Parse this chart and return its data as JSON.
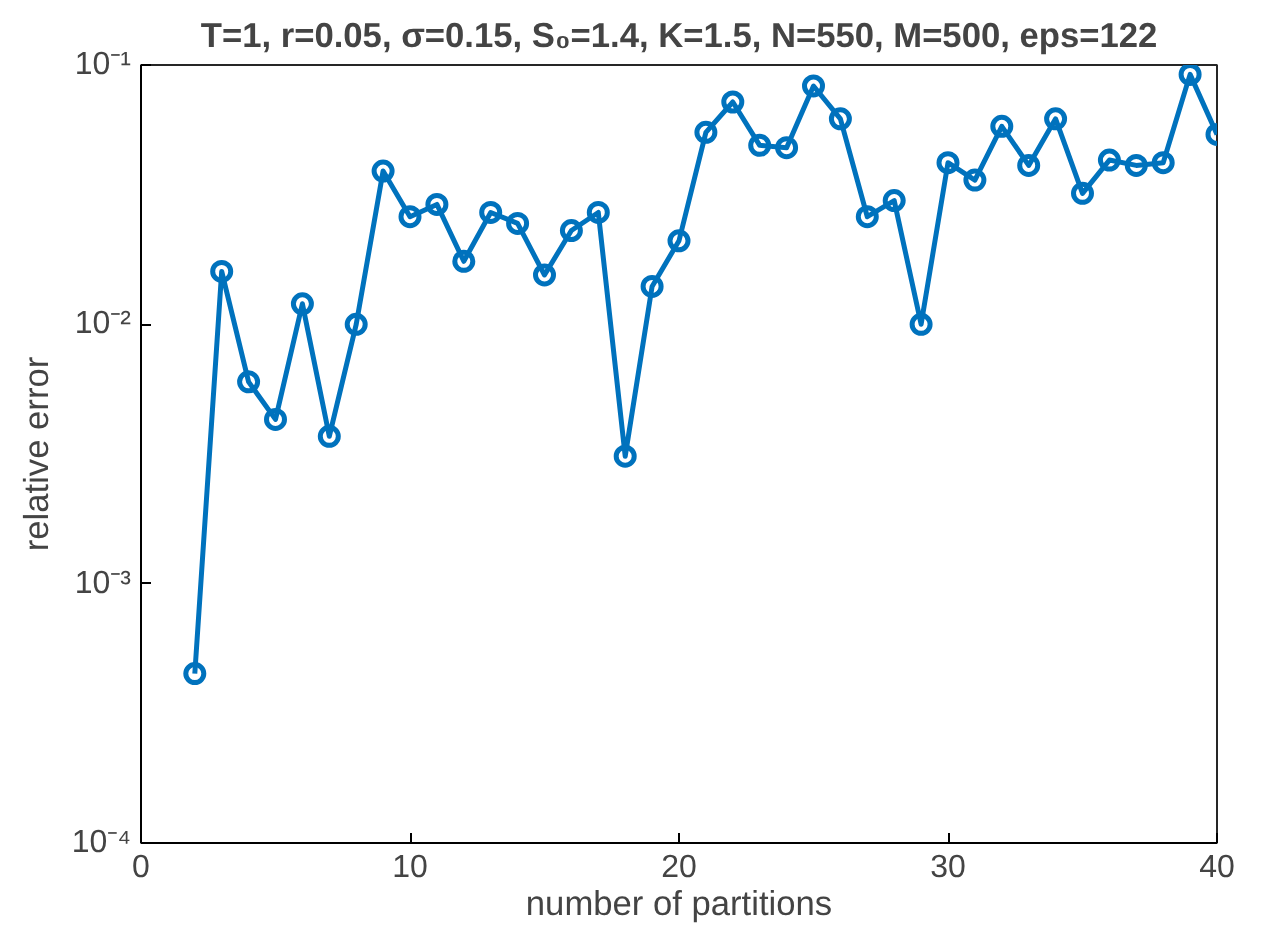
{
  "chart_data": {
    "type": "line",
    "title": "T=1, r=0.05, σ=0.15, S₀=1.4, K=1.5, N=550, M=500, eps=122",
    "xlabel": "number of partitions",
    "ylabel": "relative error",
    "x": [
      2,
      3,
      4,
      5,
      6,
      7,
      8,
      9,
      10,
      11,
      12,
      13,
      14,
      15,
      16,
      17,
      18,
      19,
      20,
      21,
      22,
      23,
      24,
      25,
      26,
      27,
      28,
      29,
      30,
      31,
      32,
      33,
      34,
      35,
      36,
      37,
      38,
      39,
      40
    ],
    "series": [
      {
        "color": "#0072bd",
        "values": [
          0.00045,
          0.016,
          0.006,
          0.0043,
          0.012,
          0.0037,
          0.01,
          0.039,
          0.026,
          0.029,
          0.0175,
          0.027,
          0.0245,
          0.0155,
          0.023,
          0.027,
          0.0031,
          0.014,
          0.021,
          0.055,
          0.072,
          0.049,
          0.048,
          0.083,
          0.062,
          0.026,
          0.03,
          0.01,
          0.042,
          0.036,
          0.058,
          0.041,
          0.062,
          0.032,
          0.043,
          0.041,
          0.042,
          0.092,
          0.054
        ]
      }
    ],
    "xlim": [
      0,
      40
    ],
    "ylim": [
      0.0001,
      0.1
    ],
    "xticks": [
      0,
      10,
      20,
      30,
      40
    ],
    "yticks": [
      {
        "value": 0.0001,
        "label": "10⁻⁴"
      },
      {
        "value": 0.001,
        "label": "10⁻³"
      },
      {
        "value": 0.01,
        "label": "10⁻²"
      },
      {
        "value": 0.1,
        "label": "10⁻¹"
      }
    ],
    "log": "y",
    "marker": "circle",
    "line_style": "solid"
  }
}
